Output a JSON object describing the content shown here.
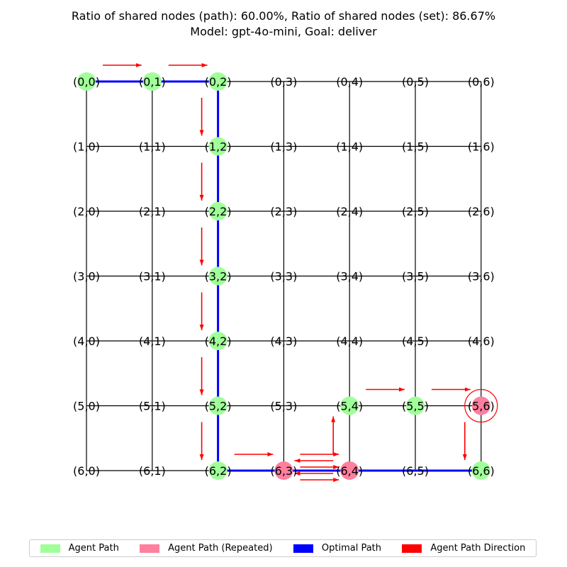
{
  "title": {
    "line1": "Ratio of shared nodes (path): 60.00%, Ratio of shared nodes (set): 86.67%",
    "line2": "Model: gpt-4o-mini, Goal: deliver"
  },
  "grid": {
    "rows": 7,
    "cols": 7
  },
  "colors": {
    "agent_path": "#a0ff99",
    "agent_repeated": "#ff7f9f",
    "optimal_path": "#0000ff",
    "direction": "#ff0000",
    "edge": "#000000"
  },
  "agent_nodes": [
    [
      0,
      0
    ],
    [
      0,
      1
    ],
    [
      0,
      2
    ],
    [
      1,
      2
    ],
    [
      2,
      2
    ],
    [
      3,
      2
    ],
    [
      4,
      2
    ],
    [
      5,
      2
    ],
    [
      6,
      2
    ],
    [
      5,
      4
    ],
    [
      5,
      5
    ],
    [
      6,
      6
    ]
  ],
  "repeated_nodes": [
    [
      6,
      3
    ],
    [
      6,
      4
    ],
    [
      5,
      6
    ]
  ],
  "goal_node": [
    5,
    6
  ],
  "optimal_path": [
    [
      0,
      0
    ],
    [
      0,
      1
    ],
    [
      0,
      2
    ],
    [
      1,
      2
    ],
    [
      2,
      2
    ],
    [
      3,
      2
    ],
    [
      4,
      2
    ],
    [
      5,
      2
    ],
    [
      6,
      2
    ],
    [
      6,
      3
    ],
    [
      6,
      4
    ],
    [
      6,
      5
    ],
    [
      6,
      6
    ]
  ],
  "direction_arrows": [
    [
      [
        0,
        0
      ],
      [
        0,
        1
      ]
    ],
    [
      [
        0,
        1
      ],
      [
        0,
        2
      ]
    ],
    [
      [
        0,
        2
      ],
      [
        1,
        2
      ]
    ],
    [
      [
        1,
        2
      ],
      [
        2,
        2
      ]
    ],
    [
      [
        2,
        2
      ],
      [
        3,
        2
      ]
    ],
    [
      [
        3,
        2
      ],
      [
        4,
        2
      ]
    ],
    [
      [
        4,
        2
      ],
      [
        5,
        2
      ]
    ],
    [
      [
        5,
        2
      ],
      [
        6,
        2
      ]
    ],
    [
      [
        6,
        2
      ],
      [
        6,
        3
      ]
    ],
    [
      [
        6,
        3
      ],
      [
        6,
        4
      ]
    ],
    [
      [
        6,
        4
      ],
      [
        6,
        3
      ]
    ],
    [
      [
        6,
        3
      ],
      [
        6,
        4
      ]
    ],
    [
      [
        6,
        4
      ],
      [
        6,
        3
      ]
    ],
    [
      [
        6,
        3
      ],
      [
        6,
        4
      ]
    ],
    [
      [
        6,
        4
      ],
      [
        5,
        4
      ]
    ],
    [
      [
        5,
        4
      ],
      [
        5,
        5
      ]
    ],
    [
      [
        5,
        5
      ],
      [
        5,
        6
      ]
    ],
    [
      [
        5,
        6
      ],
      [
        6,
        6
      ]
    ]
  ],
  "legend": [
    {
      "label": "Agent Path",
      "color": "#a0ff99"
    },
    {
      "label": "Agent Path (Repeated)",
      "color": "#ff7f9f"
    },
    {
      "label": "Optimal Path",
      "color": "#0000ff"
    },
    {
      "label": "Agent Path Direction",
      "color": "#ff0000"
    }
  ]
}
